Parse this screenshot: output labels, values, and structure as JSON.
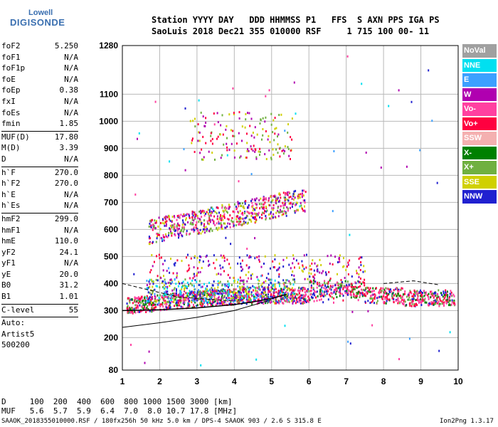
{
  "logo": {
    "top": "Lowell",
    "main": "DIGISONDE"
  },
  "header": {
    "line1": "Station YYYY DAY   DDD HHMMSS P1   FFS  S AXN PPS IGA PS",
    "line2": "SaoLuis 2018 Dec21 355 010000 RSF     1 715 100 00- 11"
  },
  "params": [
    [
      {
        "k": "foF2",
        "v": "5.250"
      },
      {
        "k": "foF1",
        "v": "N/A"
      },
      {
        "k": "foF1p",
        "v": "N/A"
      },
      {
        "k": "foE",
        "v": "N/A"
      },
      {
        "k": "foEp",
        "v": "0.38"
      },
      {
        "k": "fxI",
        "v": "N/A"
      },
      {
        "k": "foEs",
        "v": "N/A"
      },
      {
        "k": "fmin",
        "v": "1.85"
      }
    ],
    [
      {
        "k": "MUF(D)",
        "v": "17.80"
      },
      {
        "k": "M(D)",
        "v": "3.39"
      },
      {
        "k": "D",
        "v": "N/A"
      }
    ],
    [
      {
        "k": "h`F",
        "v": "270.0"
      },
      {
        "k": "h`F2",
        "v": "270.0"
      },
      {
        "k": "h`E",
        "v": "N/A"
      },
      {
        "k": "h`Es",
        "v": "N/A"
      }
    ],
    [
      {
        "k": "hmF2",
        "v": "299.0"
      },
      {
        "k": "hmF1",
        "v": "N/A"
      },
      {
        "k": "hmE",
        "v": "110.0"
      },
      {
        "k": "yF2",
        "v": "24.1"
      },
      {
        "k": "yF1",
        "v": "N/A"
      },
      {
        "k": "yE",
        "v": "20.0"
      },
      {
        "k": "B0",
        "v": "31.2"
      },
      {
        "k": "B1",
        "v": "1.01"
      }
    ],
    [
      {
        "k": "C-level",
        "v": "55"
      }
    ],
    [
      {
        "k": "Auto:",
        "v": ""
      },
      {
        "k": "Artist5",
        "v": ""
      },
      {
        "k": "500200",
        "v": ""
      }
    ]
  ],
  "legend": [
    {
      "label": "NoVal",
      "color": "#a0a0a0"
    },
    {
      "label": "NNE",
      "color": "#00e0f0"
    },
    {
      "label": "E",
      "color": "#3ca0ff"
    },
    {
      "label": "W",
      "color": "#b000b0"
    },
    {
      "label": "Vo-",
      "color": "#ff40a0"
    },
    {
      "label": "Vo+",
      "color": "#ff0040"
    },
    {
      "label": "SSW",
      "color": "#f4b0b0"
    },
    {
      "label": "X-",
      "color": "#008000"
    },
    {
      "label": "X+",
      "color": "#70b040"
    },
    {
      "label": "SSE",
      "color": "#d0d000"
    },
    {
      "label": "NNW",
      "color": "#2020d0"
    }
  ],
  "footer": {
    "d_row": "D     100  200  400  600  800 1000 1500 3000 [km]",
    "muf_row": "MUF   5.6  5.7  5.9  6.4  7.0  8.0 10.7 17.8 [MHz]",
    "file": "SAAOK_2018355010000.RSF / 180fx256h 50 kHz 5.0 km / DPS-4 SAAOK 903 / 2.6 S 315.8 E",
    "version": "Ion2Png 1.3.17"
  },
  "chart_data": {
    "type": "scatter",
    "xlim": [
      1,
      10
    ],
    "ylim": [
      80,
      1280
    ],
    "xticks": [
      1,
      2,
      3,
      4,
      5,
      6,
      7,
      8,
      9,
      10
    ],
    "yticks": [
      80,
      200,
      300,
      400,
      500,
      600,
      700,
      800,
      900,
      1000,
      1100,
      1280
    ],
    "grid": true,
    "clusters": [
      {
        "name": "F2 trace",
        "xmin": 1.1,
        "xmax": 9.9,
        "ymin": 280,
        "ymax": 420,
        "n": 1400,
        "colors": [
          "#ff0040",
          "#ff40a0",
          "#ff0040",
          "#ff40a0",
          "#008000",
          "#70b040",
          "#2020d0"
        ]
      },
      {
        "name": "F2 low-band",
        "xmin": 1.6,
        "xmax": 5.6,
        "ymin": 330,
        "ymax": 420,
        "n": 500,
        "colors": [
          "#d0d000",
          "#3ca0ff",
          "#00e0f0",
          "#70b040",
          "#b000b0",
          "#2020d0"
        ]
      },
      {
        "name": "F2 upper",
        "xmin": 1.7,
        "xmax": 7.5,
        "ymin": 420,
        "ymax": 510,
        "n": 220,
        "colors": [
          "#2020d0",
          "#b000b0",
          "#d0d000",
          "#ff0040"
        ]
      },
      {
        "name": "second hop",
        "xmin": 1.7,
        "xmax": 5.9,
        "ymin": 570,
        "ymax": 760,
        "n": 650,
        "colors": [
          "#ff0040",
          "#ff40a0",
          "#b000b0",
          "#2020d0",
          "#d0d000",
          "#70b040"
        ]
      },
      {
        "name": "third hop",
        "xmin": 2.8,
        "xmax": 5.6,
        "ymin": 860,
        "ymax": 1040,
        "n": 160,
        "colors": [
          "#d0d000",
          "#ff0040",
          "#70b040",
          "#b000b0"
        ]
      },
      {
        "name": "noise",
        "xmin": 1.2,
        "xmax": 9.8,
        "ymin": 90,
        "ymax": 1270,
        "n": 70,
        "colors": [
          "#3ca0ff",
          "#00e0f0",
          "#ff40a0",
          "#2020d0",
          "#b000b0"
        ]
      }
    ],
    "trace_line": [
      [
        1.0,
        300
      ],
      [
        2.0,
        303
      ],
      [
        3.0,
        310
      ],
      [
        4.0,
        322
      ],
      [
        4.5,
        332
      ],
      [
        5.0,
        345
      ],
      [
        5.4,
        360
      ]
    ],
    "model_line": [
      [
        1.0,
        238
      ],
      [
        2.0,
        255
      ],
      [
        3.0,
        275
      ],
      [
        4.0,
        300
      ],
      [
        5.0,
        340
      ]
    ],
    "dashed_lines": [
      {
        "points": [
          [
            1.0,
            400
          ],
          [
            2.5,
            350
          ],
          [
            4.0,
            335
          ]
        ]
      },
      {
        "points": [
          [
            8.0,
            400
          ],
          [
            8.8,
            410
          ],
          [
            9.5,
            395
          ]
        ]
      }
    ]
  }
}
